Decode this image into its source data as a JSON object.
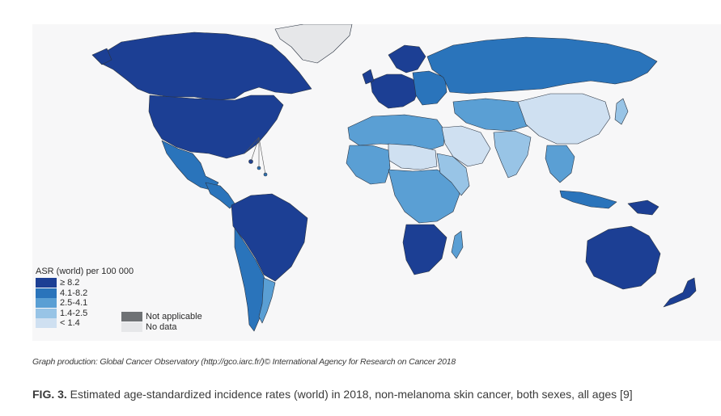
{
  "legend": {
    "title": "ASR (world) per 100 000",
    "bins": [
      {
        "label": "≥ 8.2",
        "color": "#1c3f94"
      },
      {
        "label": "4.1-8.2",
        "color": "#2a74bb"
      },
      {
        "label": "2.5-4.1",
        "color": "#5a9fd4"
      },
      {
        "label": "1.4-2.5",
        "color": "#98c4e6"
      },
      {
        "label": "< 1.4",
        "color": "#cfe0f1"
      }
    ],
    "extra": [
      {
        "label": "Not applicable",
        "color": "#6f7275"
      },
      {
        "label": "No data",
        "color": "#e6e7e9"
      }
    ]
  },
  "credit": "Graph production: Global Cancer Observatory (http://gco.iarc.fr/)© International Agency for Research on Cancer 2018",
  "caption": {
    "label": "FIG. 3.",
    "text": " Estimated age-standardized incidence rates (world) in 2018, non-melanoma skin cancer, both sexes, all ages [9]"
  },
  "regions": [
    {
      "name": "greenland",
      "bin": "No data"
    },
    {
      "name": "canada",
      "bin": "≥ 8.2"
    },
    {
      "name": "usa",
      "bin": "≥ 8.2"
    },
    {
      "name": "mexico",
      "bin": "4.1-8.2"
    },
    {
      "name": "central-america",
      "bin": "4.1-8.2"
    },
    {
      "name": "brazil-north-south-america",
      "bin": "≥ 8.2"
    },
    {
      "name": "argentina-chile",
      "bin": "4.1-8.2"
    },
    {
      "name": "western-europe",
      "bin": "≥ 8.2"
    },
    {
      "name": "scandinavia",
      "bin": "≥ 8.2"
    },
    {
      "name": "russia",
      "bin": "4.1-8.2"
    },
    {
      "name": "north-africa",
      "bin": "2.5-4.1"
    },
    {
      "name": "sahel",
      "bin": "< 1.4"
    },
    {
      "name": "central-africa",
      "bin": "2.5-4.1"
    },
    {
      "name": "southern-africa",
      "bin": "≥ 8.2"
    },
    {
      "name": "arabia",
      "bin": "< 1.4"
    },
    {
      "name": "central-asia",
      "bin": "2.5-4.1"
    },
    {
      "name": "china",
      "bin": "< 1.4"
    },
    {
      "name": "india",
      "bin": "1.4-2.5"
    },
    {
      "name": "southeast-asia",
      "bin": "2.5-4.1"
    },
    {
      "name": "japan",
      "bin": "1.4-2.5"
    },
    {
      "name": "indonesia",
      "bin": "4.1-8.2"
    },
    {
      "name": "papua",
      "bin": "≥ 8.2"
    },
    {
      "name": "australia",
      "bin": "≥ 8.2"
    },
    {
      "name": "new-zealand",
      "bin": "≥ 8.2"
    },
    {
      "name": "madagascar",
      "bin": "2.5-4.1"
    }
  ]
}
